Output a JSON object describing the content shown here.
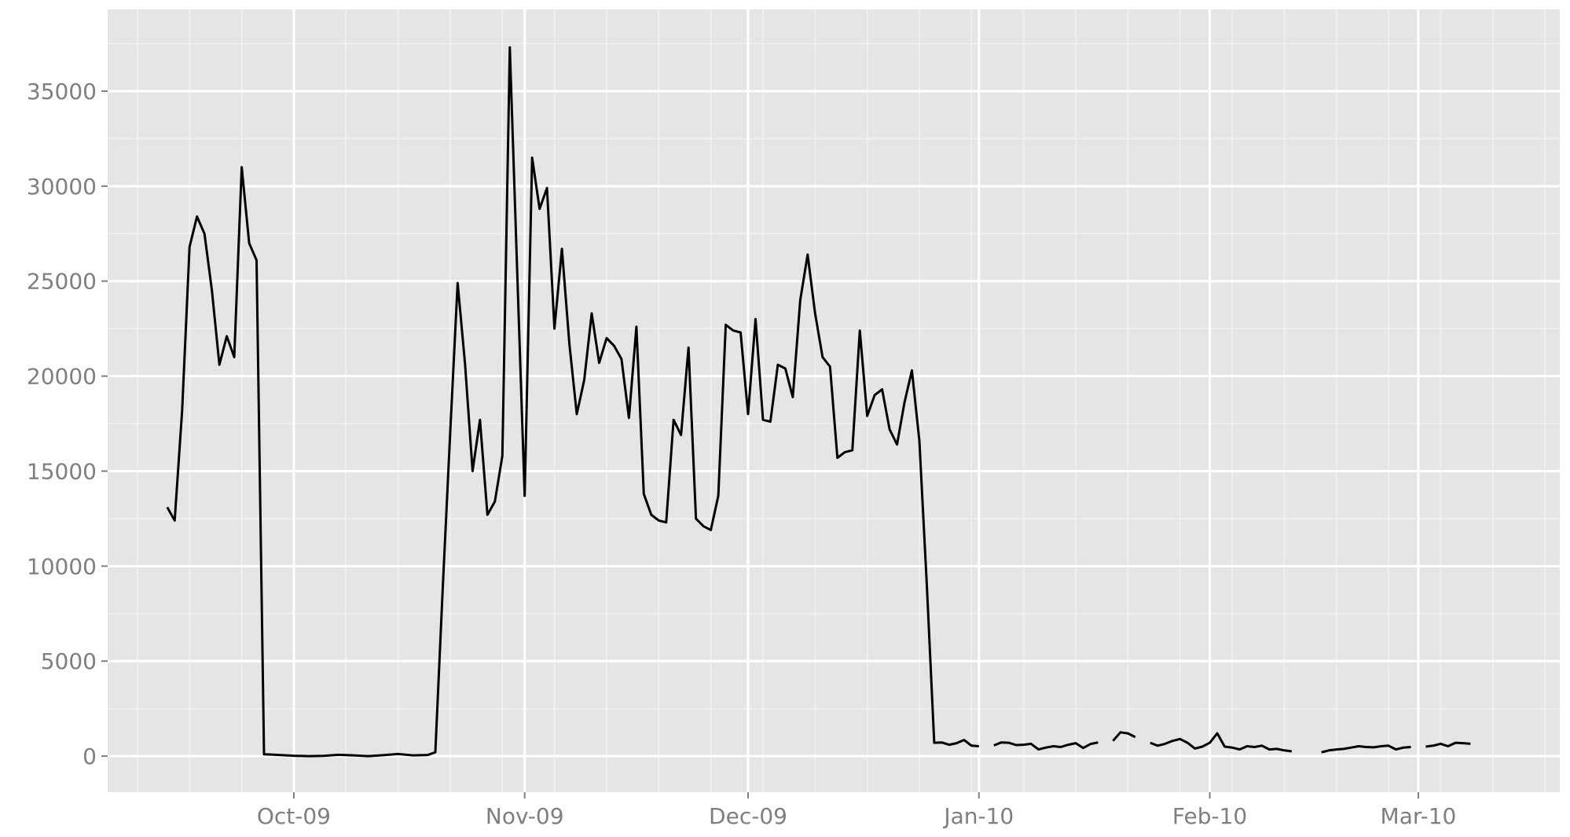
{
  "chart_data": {
    "type": "line",
    "title": "",
    "xlabel": "",
    "ylabel": "",
    "grid": true,
    "legend": "none",
    "colors": {
      "panel": "#e5e5e5",
      "grid_major": "#ffffff",
      "grid_minor": "#f2f2f2",
      "line": "#000000",
      "tick_text": "#7f7f7f",
      "tick_mark": "#7f7f7f"
    },
    "x_range": [
      "2009-09-06",
      "2010-03-20"
    ],
    "y_range": [
      -1900,
      39300
    ],
    "x_ticks": [
      {
        "date": "2009-10-01",
        "label": "Oct-09"
      },
      {
        "date": "2009-11-01",
        "label": "Nov-09"
      },
      {
        "date": "2009-12-01",
        "label": "Dec-09"
      },
      {
        "date": "2010-01-01",
        "label": "Jan-10"
      },
      {
        "date": "2010-02-01",
        "label": "Feb-10"
      },
      {
        "date": "2010-03-01",
        "label": "Mar-10"
      }
    ],
    "y_ticks": [
      {
        "value": 0,
        "label": "0"
      },
      {
        "value": 5000,
        "label": "5000"
      },
      {
        "value": 10000,
        "label": "10000"
      },
      {
        "value": 15000,
        "label": "15000"
      },
      {
        "value": 20000,
        "label": "20000"
      },
      {
        "value": 25000,
        "label": "25000"
      },
      {
        "value": 30000,
        "label": "30000"
      },
      {
        "value": 35000,
        "label": "35000"
      }
    ],
    "series": [
      {
        "segments": [
          [
            [
              "2009-09-14",
              13100
            ],
            [
              "2009-09-15",
              12400
            ],
            [
              "2009-09-16",
              18200
            ],
            [
              "2009-09-17",
              26800
            ],
            [
              "2009-09-18",
              28400
            ],
            [
              "2009-09-19",
              27500
            ],
            [
              "2009-09-20",
              24500
            ],
            [
              "2009-09-21",
              20600
            ],
            [
              "2009-09-22",
              22100
            ],
            [
              "2009-09-23",
              21000
            ],
            [
              "2009-09-24",
              31000
            ],
            [
              "2009-09-25",
              27000
            ],
            [
              "2009-09-26",
              26100
            ],
            [
              "2009-09-27",
              100
            ],
            [
              "2009-09-28",
              80
            ],
            [
              "2009-09-29",
              60
            ],
            [
              "2009-09-30",
              40
            ],
            [
              "2009-10-01",
              20
            ],
            [
              "2009-10-03",
              0
            ],
            [
              "2009-10-05",
              10
            ],
            [
              "2009-10-07",
              70
            ],
            [
              "2009-10-09",
              40
            ],
            [
              "2009-10-11",
              0
            ],
            [
              "2009-10-13",
              50
            ],
            [
              "2009-10-15",
              110
            ],
            [
              "2009-10-17",
              40
            ],
            [
              "2009-10-19",
              60
            ],
            [
              "2009-10-20",
              200
            ],
            [
              "2009-10-21",
              8900
            ],
            [
              "2009-10-22",
              17000
            ],
            [
              "2009-10-23",
              24900
            ],
            [
              "2009-10-24",
              20600
            ],
            [
              "2009-10-25",
              15000
            ],
            [
              "2009-10-26",
              17700
            ],
            [
              "2009-10-27",
              12700
            ],
            [
              "2009-10-28",
              13400
            ],
            [
              "2009-10-29",
              15800
            ],
            [
              "2009-10-30",
              37300
            ],
            [
              "2009-10-31",
              25500
            ],
            [
              "2009-11-01",
              13700
            ],
            [
              "2009-11-02",
              31500
            ],
            [
              "2009-11-03",
              28800
            ],
            [
              "2009-11-04",
              29900
            ],
            [
              "2009-11-05",
              22500
            ],
            [
              "2009-11-06",
              26700
            ],
            [
              "2009-11-07",
              21700
            ],
            [
              "2009-11-08",
              18000
            ],
            [
              "2009-11-09",
              19800
            ],
            [
              "2009-11-10",
              23300
            ],
            [
              "2009-11-11",
              20700
            ],
            [
              "2009-11-12",
              22000
            ],
            [
              "2009-11-13",
              21600
            ],
            [
              "2009-11-14",
              20900
            ],
            [
              "2009-11-15",
              17800
            ],
            [
              "2009-11-16",
              22600
            ],
            [
              "2009-11-17",
              13800
            ],
            [
              "2009-11-18",
              12700
            ],
            [
              "2009-11-19",
              12400
            ],
            [
              "2009-11-20",
              12300
            ],
            [
              "2009-11-21",
              17700
            ],
            [
              "2009-11-22",
              16900
            ],
            [
              "2009-11-23",
              21500
            ],
            [
              "2009-11-24",
              12500
            ],
            [
              "2009-11-25",
              12100
            ],
            [
              "2009-11-26",
              11900
            ],
            [
              "2009-11-27",
              13700
            ],
            [
              "2009-11-28",
              22700
            ],
            [
              "2009-11-29",
              22400
            ],
            [
              "2009-11-30",
              22300
            ],
            [
              "2009-12-01",
              18000
            ],
            [
              "2009-12-02",
              23000
            ],
            [
              "2009-12-03",
              17700
            ],
            [
              "2009-12-04",
              17600
            ],
            [
              "2009-12-05",
              20600
            ],
            [
              "2009-12-06",
              20400
            ],
            [
              "2009-12-07",
              18900
            ],
            [
              "2009-12-08",
              24000
            ],
            [
              "2009-12-09",
              26400
            ],
            [
              "2009-12-10",
              23300
            ],
            [
              "2009-12-11",
              21000
            ],
            [
              "2009-12-12",
              20500
            ],
            [
              "2009-12-13",
              15700
            ],
            [
              "2009-12-14",
              16000
            ],
            [
              "2009-12-15",
              16100
            ],
            [
              "2009-12-16",
              22400
            ],
            [
              "2009-12-17",
              17900
            ],
            [
              "2009-12-18",
              19000
            ],
            [
              "2009-12-19",
              19300
            ],
            [
              "2009-12-20",
              17200
            ],
            [
              "2009-12-21",
              16400
            ],
            [
              "2009-12-22",
              18600
            ],
            [
              "2009-12-23",
              20300
            ],
            [
              "2009-12-24",
              16600
            ],
            [
              "2009-12-25",
              9000
            ],
            [
              "2009-12-26",
              700
            ],
            [
              "2009-12-27",
              720
            ],
            [
              "2009-12-28",
              600
            ],
            [
              "2009-12-29",
              680
            ],
            [
              "2009-12-30",
              850
            ],
            [
              "2009-12-31",
              550
            ],
            [
              "2010-01-01",
              520
            ]
          ],
          [
            [
              "2010-01-03",
              560
            ],
            [
              "2010-01-04",
              720
            ],
            [
              "2010-01-05",
              700
            ],
            [
              "2010-01-06",
              580
            ],
            [
              "2010-01-07",
              600
            ],
            [
              "2010-01-08",
              650
            ],
            [
              "2010-01-09",
              350
            ],
            [
              "2010-01-10",
              450
            ],
            [
              "2010-01-11",
              520
            ],
            [
              "2010-01-12",
              480
            ],
            [
              "2010-01-13",
              600
            ],
            [
              "2010-01-14",
              680
            ],
            [
              "2010-01-15",
              430
            ],
            [
              "2010-01-16",
              640
            ],
            [
              "2010-01-17",
              720
            ]
          ],
          [
            [
              "2010-01-19",
              800
            ],
            [
              "2010-01-20",
              1250
            ],
            [
              "2010-01-21",
              1200
            ],
            [
              "2010-01-22",
              1000
            ]
          ],
          [
            [
              "2010-01-24",
              700
            ],
            [
              "2010-01-25",
              550
            ],
            [
              "2010-01-26",
              650
            ],
            [
              "2010-01-27",
              800
            ],
            [
              "2010-01-28",
              900
            ],
            [
              "2010-01-29",
              700
            ],
            [
              "2010-01-30",
              400
            ],
            [
              "2010-01-31",
              500
            ],
            [
              "2010-02-01",
              700
            ],
            [
              "2010-02-02",
              1200
            ],
            [
              "2010-02-03",
              500
            ],
            [
              "2010-02-04",
              450
            ],
            [
              "2010-02-05",
              350
            ],
            [
              "2010-02-06",
              520
            ],
            [
              "2010-02-07",
              480
            ],
            [
              "2010-02-08",
              550
            ],
            [
              "2010-02-09",
              350
            ],
            [
              "2010-02-10",
              380
            ],
            [
              "2010-02-11",
              300
            ],
            [
              "2010-02-12",
              250
            ]
          ],
          [
            [
              "2010-02-16",
              200
            ],
            [
              "2010-02-17",
              300
            ],
            [
              "2010-02-18",
              350
            ],
            [
              "2010-02-19",
              380
            ],
            [
              "2010-02-20",
              450
            ],
            [
              "2010-02-21",
              520
            ],
            [
              "2010-02-22",
              480
            ],
            [
              "2010-02-23",
              460
            ],
            [
              "2010-02-24",
              520
            ],
            [
              "2010-02-25",
              550
            ],
            [
              "2010-02-26",
              350
            ],
            [
              "2010-02-27",
              450
            ],
            [
              "2010-02-28",
              480
            ]
          ],
          [
            [
              "2010-03-02",
              500
            ],
            [
              "2010-03-03",
              550
            ],
            [
              "2010-03-04",
              650
            ],
            [
              "2010-03-05",
              520
            ],
            [
              "2010-03-06",
              700
            ],
            [
              "2010-03-07",
              680
            ],
            [
              "2010-03-08",
              650
            ]
          ]
        ]
      }
    ]
  }
}
